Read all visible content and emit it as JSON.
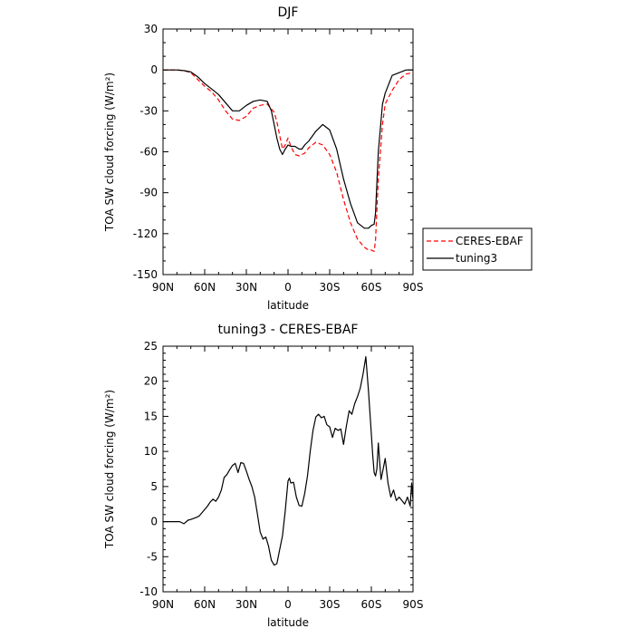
{
  "chart_data": [
    {
      "type": "line",
      "title": "DJF",
      "xlabel": "latitude",
      "ylabel": "TOA SW cloud forcing (W/m²)",
      "x_ticks": [
        "90N",
        "60N",
        "30N",
        "0",
        "30S",
        "60S",
        "90S"
      ],
      "x_tick_values": [
        90,
        60,
        30,
        0,
        -30,
        -60,
        -90
      ],
      "y_ticks": [
        30,
        0,
        -30,
        -60,
        -90,
        -120,
        -150
      ],
      "xlim": [
        90,
        -90
      ],
      "ylim": [
        -150,
        30
      ],
      "legend_position": "right",
      "colors": {
        "CERES-EBAF": "#ff0000",
        "tuning3": "#000000"
      },
      "series": [
        {
          "name": "CERES-EBAF",
          "style": "dashed",
          "color": "#ff0000",
          "x": [
            90,
            80,
            75,
            70,
            65,
            60,
            55,
            50,
            45,
            40,
            35,
            30,
            25,
            20,
            15,
            10,
            8,
            6,
            4,
            2,
            0,
            -2,
            -5,
            -8,
            -12,
            -15,
            -20,
            -25,
            -30,
            -35,
            -40,
            -45,
            -50,
            -55,
            -58,
            -60,
            -62,
            -63,
            -65,
            -68,
            -70,
            -75,
            -80,
            -85,
            -90
          ],
          "y": [
            0,
            0,
            -0.5,
            -2,
            -7,
            -12,
            -16,
            -22,
            -30,
            -36,
            -37,
            -34,
            -28,
            -26,
            -25,
            -31,
            -38,
            -48,
            -58,
            -55,
            -50,
            -56,
            -62,
            -63,
            -61,
            -57,
            -53,
            -55,
            -62,
            -75,
            -95,
            -112,
            -124,
            -130,
            -132,
            -132,
            -133,
            -125,
            -80,
            -40,
            -25,
            -15,
            -7,
            -3,
            -2
          ]
        },
        {
          "name": "tuning3",
          "style": "solid",
          "color": "#000000",
          "x": [
            90,
            80,
            75,
            70,
            65,
            60,
            55,
            50,
            45,
            40,
            35,
            30,
            25,
            20,
            15,
            12,
            10,
            8,
            6,
            4,
            2,
            0,
            -2,
            -5,
            -8,
            -10,
            -12,
            -15,
            -20,
            -25,
            -30,
            -35,
            -40,
            -45,
            -50,
            -55,
            -58,
            -60,
            -62,
            -63,
            -65,
            -68,
            -70,
            -75,
            -80,
            -85,
            -90
          ],
          "y": [
            0,
            0,
            -0.5,
            -1.5,
            -5,
            -10,
            -14,
            -18,
            -24,
            -30,
            -30,
            -26,
            -23,
            -22,
            -23,
            -30,
            -40,
            -50,
            -58,
            -62,
            -58,
            -55,
            -56,
            -56,
            -58,
            -58,
            -55,
            -52,
            -45,
            -40,
            -44,
            -58,
            -80,
            -98,
            -112,
            -116,
            -116,
            -114,
            -113,
            -105,
            -60,
            -25,
            -17,
            -4,
            -2,
            0,
            0
          ]
        }
      ]
    },
    {
      "type": "line",
      "title": "tuning3 - CERES-EBAF",
      "xlabel": "latitude",
      "ylabel": "TOA SW cloud forcing (W/m²)",
      "x_ticks": [
        "90N",
        "60N",
        "30N",
        "0",
        "30S",
        "60S",
        "90S"
      ],
      "x_tick_values": [
        90,
        60,
        30,
        0,
        -30,
        -60,
        -90
      ],
      "y_ticks": [
        25,
        20,
        15,
        10,
        5,
        0,
        -5,
        -10
      ],
      "xlim": [
        90,
        -90
      ],
      "ylim": [
        -10,
        25
      ],
      "series": [
        {
          "style": "solid",
          "color": "#000000",
          "x": [
            90,
            78,
            75,
            72,
            70,
            66,
            64,
            61,
            58,
            56,
            54,
            52,
            50,
            48,
            46,
            44,
            42,
            40,
            38,
            36,
            34,
            32,
            30,
            28,
            26,
            24,
            22,
            20,
            18,
            16,
            14,
            12,
            10,
            8,
            6,
            4,
            2,
            0,
            -1,
            -2,
            -4,
            -6,
            -8,
            -10,
            -12,
            -14,
            -16,
            -18,
            -20,
            -22,
            -24,
            -26,
            -28,
            -30,
            -32,
            -34,
            -36,
            -38,
            -40,
            -42,
            -44,
            -46,
            -48,
            -50,
            -52,
            -54,
            -56,
            -58,
            -60,
            -61,
            -62,
            -63,
            -64,
            -65,
            -66,
            -67,
            -68,
            -70,
            -72,
            -74,
            -76,
            -78,
            -80,
            -82,
            -84,
            -86,
            -88,
            -89,
            -90
          ],
          "y": [
            0,
            0,
            -0.3,
            0.2,
            0.3,
            0.6,
            0.8,
            1.5,
            2.2,
            2.8,
            3.2,
            2.9,
            3.5,
            4.5,
            6.3,
            6.7,
            7.4,
            8.0,
            8.3,
            7.0,
            8.4,
            8.3,
            7.2,
            6.0,
            5.0,
            3.5,
            1.0,
            -1.5,
            -2.5,
            -2.2,
            -3.5,
            -5.5,
            -6.2,
            -6.0,
            -4.0,
            -2.0,
            1.5,
            5.8,
            6.2,
            5.5,
            5.6,
            3.5,
            2.3,
            2.2,
            4.0,
            6.5,
            10.0,
            13.0,
            14.9,
            15.3,
            14.8,
            15.0,
            13.8,
            13.5,
            12.0,
            13.3,
            13.0,
            13.2,
            11.0,
            13.6,
            15.8,
            15.3,
            16.8,
            17.8,
            19.0,
            21.0,
            23.5,
            18.5,
            12.5,
            9.5,
            7.0,
            6.5,
            7.5,
            11.2,
            8.5,
            6.0,
            7.0,
            9.0,
            5.5,
            3.5,
            4.5,
            3.0,
            3.5,
            3.0,
            2.5,
            3.5,
            2.2,
            5.5,
            3.0
          ]
        }
      ]
    }
  ]
}
